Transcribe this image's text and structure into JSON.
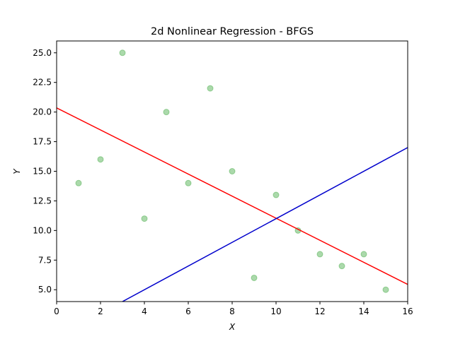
{
  "chart_data": {
    "type": "scatter",
    "title": "2d Nonlinear Regression - BFGS",
    "xlabel": "X",
    "ylabel": "Y",
    "xlim": [
      0,
      16
    ],
    "ylim": [
      4.0,
      26.0
    ],
    "xticks": [
      0,
      2,
      4,
      6,
      8,
      10,
      12,
      14,
      16
    ],
    "yticks": [
      5.0,
      7.5,
      10.0,
      12.5,
      15.0,
      17.5,
      20.0,
      22.5,
      25.0
    ],
    "ytick_labels": [
      "5.0",
      "7.5",
      "10.0",
      "12.5",
      "15.0",
      "17.5",
      "20.0",
      "22.5",
      "25.0"
    ],
    "grid": false,
    "series": [
      {
        "kind": "scatter",
        "color": "#2ca02c",
        "x": [
          1,
          2,
          3,
          4,
          5,
          6,
          7,
          8,
          9,
          10,
          11,
          12,
          13,
          14,
          15
        ],
        "y": [
          14,
          16,
          25,
          11,
          20,
          14,
          22,
          15,
          6,
          13,
          10,
          8,
          7,
          8,
          5
        ]
      },
      {
        "kind": "line",
        "color": "#ff0000",
        "x": [
          0,
          16
        ],
        "y": [
          20.35,
          5.45
        ]
      },
      {
        "kind": "line",
        "color": "#0000cc",
        "x": [
          3,
          16
        ],
        "y": [
          4.0,
          17.0
        ]
      }
    ]
  }
}
